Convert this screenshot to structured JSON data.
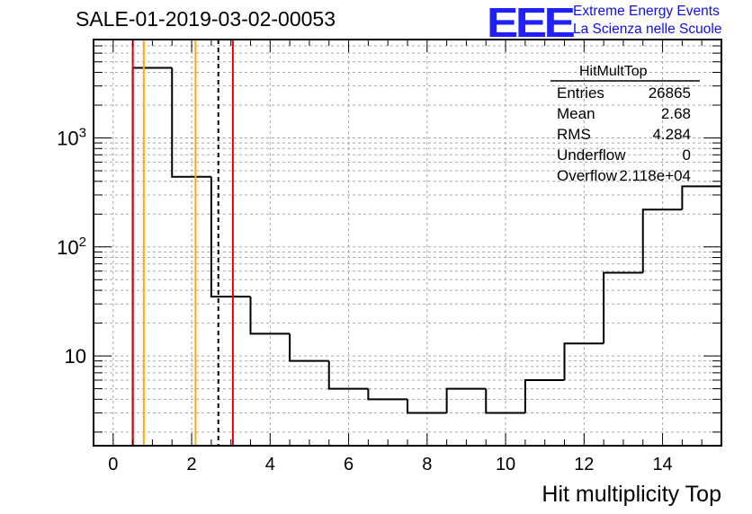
{
  "header": {
    "run_title": "SALE-01-2019-03-02-00053",
    "logo_text": "EEE",
    "logo_line1": "Extreme Energy Events",
    "logo_line2": "La Scienza nelle Scuole",
    "logo_color": "#1a1aff"
  },
  "stats_box": {
    "title": "HitMultTop",
    "rows": [
      {
        "label": "Entries",
        "value": "26865"
      },
      {
        "label": "Mean",
        "value": "2.68"
      },
      {
        "label": "RMS",
        "value": "4.284"
      },
      {
        "label": "Underflow",
        "value": "0"
      },
      {
        "label": "Overflow",
        "value": "2.118e+04"
      }
    ]
  },
  "chart_data": {
    "type": "histogram",
    "title": "",
    "xlabel": "Hit multiplicity Top",
    "ylabel": "",
    "xlim": [
      -0.5,
      15.5
    ],
    "ylim": [
      1.5,
      8000
    ],
    "yscale": "log",
    "grid": true,
    "bins": [
      -0.5,
      0.5,
      1.5,
      2.5,
      3.5,
      4.5,
      5.5,
      6.5,
      7.5,
      8.5,
      9.5,
      10.5,
      11.5,
      12.5,
      13.5,
      14.5,
      15.5
    ],
    "values": [
      0,
      4400,
      440,
      35,
      16,
      9,
      5,
      4,
      3,
      5,
      3,
      6,
      13,
      58,
      220,
      360
    ],
    "x_ticks": [
      0,
      2,
      4,
      6,
      8,
      10,
      12,
      14
    ],
    "x_tick_labels": [
      "0",
      "2",
      "4",
      "6",
      "8",
      "10",
      "12",
      "14"
    ],
    "y_ticks": [
      {
        "value": 10,
        "base": "10",
        "exp": ""
      },
      {
        "value": 100,
        "base": "10",
        "exp": "2"
      },
      {
        "value": 1000,
        "base": "10",
        "exp": "3"
      }
    ],
    "vertical_lines": [
      {
        "x": 0.5,
        "color": "#e00000",
        "style": "solid"
      },
      {
        "x": 0.78,
        "color": "#ffaa00",
        "style": "solid"
      },
      {
        "x": 2.1,
        "color": "#ffaa00",
        "style": "solid"
      },
      {
        "x": 2.68,
        "color": "#000000",
        "style": "dashed"
      },
      {
        "x": 3.05,
        "color": "#e00000",
        "style": "solid"
      }
    ]
  }
}
